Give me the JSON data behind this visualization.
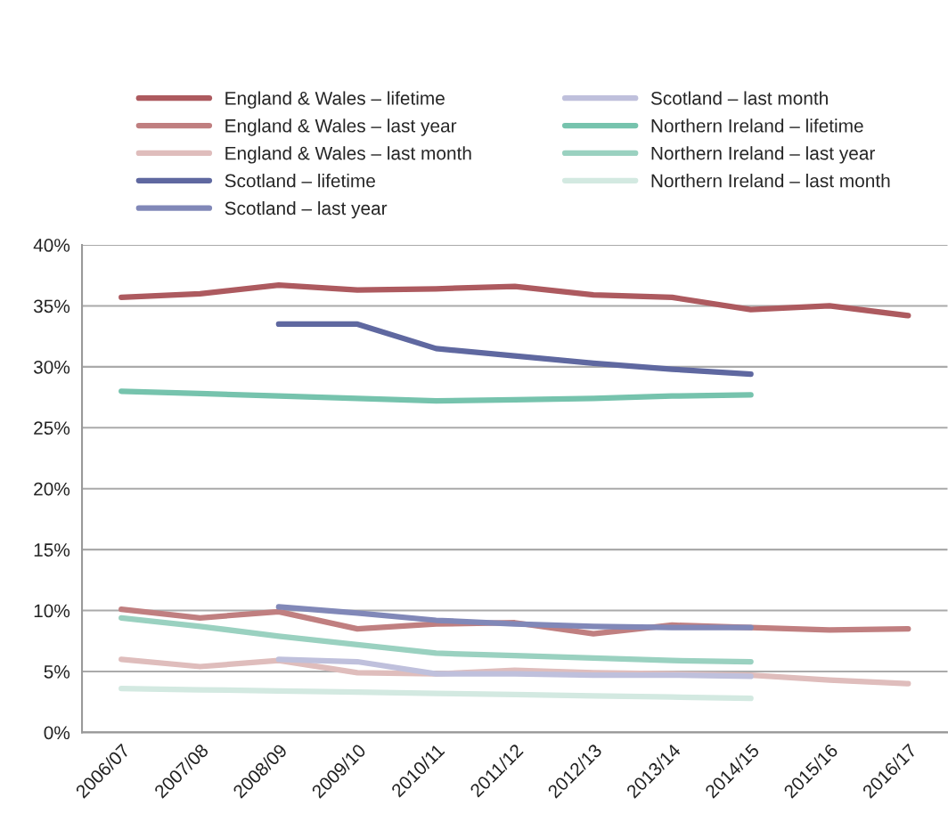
{
  "chart_data": {
    "type": "line",
    "categories": [
      "2006/07",
      "2007/08",
      "2008/09",
      "2009/10",
      "2010/11",
      "2011/12",
      "2012/13",
      "2013/14",
      "2014/15",
      "2015/16",
      "2016/17"
    ],
    "series": [
      {
        "name": "England & Wales – lifetime",
        "color": "#ad5a5f",
        "values": [
          35.7,
          36.0,
          36.7,
          36.3,
          36.4,
          36.6,
          35.9,
          35.7,
          34.7,
          35.0,
          34.2
        ]
      },
      {
        "name": "England & Wales – last year",
        "color": "#c07f80",
        "values": [
          10.1,
          9.4,
          9.9,
          8.5,
          8.9,
          9.0,
          8.1,
          8.8,
          8.6,
          8.4,
          8.5
        ]
      },
      {
        "name": "England & Wales – last month",
        "color": "#dfbdbc",
        "values": [
          6.0,
          5.4,
          5.9,
          4.9,
          4.8,
          5.1,
          4.9,
          4.8,
          4.7,
          4.3,
          4.0
        ]
      },
      {
        "name": "Scotland – lifetime",
        "color": "#5f68a0",
        "values": [
          null,
          null,
          33.5,
          33.5,
          31.5,
          30.9,
          30.3,
          29.8,
          29.4,
          null,
          null
        ]
      },
      {
        "name": "Scotland – last year",
        "color": "#8188b8",
        "values": [
          null,
          null,
          10.3,
          9.8,
          9.2,
          8.9,
          8.7,
          8.6,
          8.6,
          null,
          null
        ]
      },
      {
        "name": "Scotland – last month",
        "color": "#bfc0dc",
        "values": [
          null,
          null,
          6.0,
          5.8,
          4.8,
          4.8,
          4.7,
          4.7,
          4.6,
          null,
          null
        ]
      },
      {
        "name": "Northern Ireland – lifetime",
        "color": "#76c3ad",
        "values": [
          28.0,
          27.8,
          27.6,
          27.4,
          27.2,
          27.3,
          27.4,
          27.6,
          27.7,
          null,
          null
        ]
      },
      {
        "name": "Northern Ireland – last year",
        "color": "#9ad1c0",
        "values": [
          9.4,
          8.7,
          7.9,
          7.2,
          6.5,
          6.3,
          6.1,
          5.9,
          5.8,
          null,
          null
        ]
      },
      {
        "name": "Northern Ireland – last month",
        "color": "#d3e9e1",
        "values": [
          3.6,
          3.5,
          3.4,
          3.3,
          3.2,
          3.1,
          3.0,
          2.9,
          2.8,
          null,
          null
        ]
      }
    ],
    "ylim": [
      0,
      40
    ],
    "yticks": [
      {
        "value": 0,
        "label": "0%"
      },
      {
        "value": 5,
        "label": "5%"
      },
      {
        "value": 10,
        "label": "10%"
      },
      {
        "value": 15,
        "label": "15%"
      },
      {
        "value": 20,
        "label": "20%"
      },
      {
        "value": 25,
        "label": "25%"
      },
      {
        "value": 30,
        "label": "30%"
      },
      {
        "value": 35,
        "label": "35%"
      },
      {
        "value": 40,
        "label": "40%"
      }
    ],
    "grid": "y",
    "legend": "top",
    "marker": "none",
    "line_style": "solid"
  }
}
